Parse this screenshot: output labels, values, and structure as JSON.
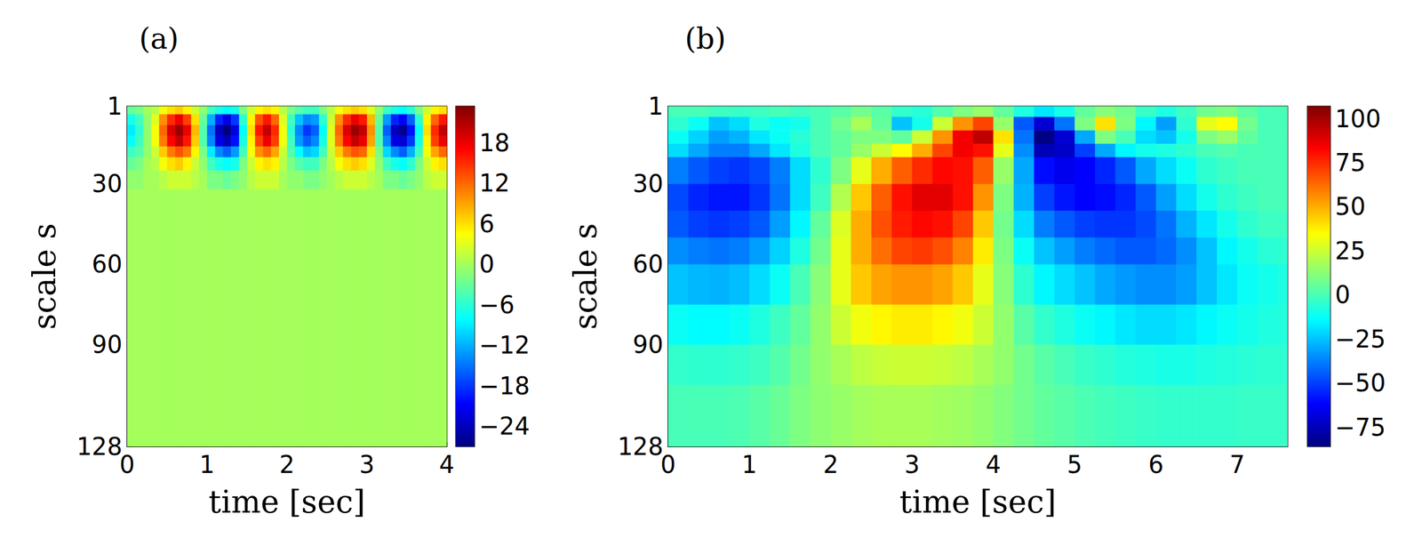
{
  "chart_data": [
    {
      "type": "heatmap",
      "title": "(a)",
      "xlabel": "time [sec]",
      "ylabel": "scale s",
      "xlim": [
        0,
        4
      ],
      "xticks": [
        0,
        1,
        2,
        3,
        4
      ],
      "ylim": [
        128,
        1
      ],
      "yticks": [
        1,
        30,
        60,
        90,
        128
      ],
      "cells": {
        "x_edges": [
          0,
          0.1,
          0.2,
          0.3,
          0.4,
          0.5,
          0.6,
          0.7,
          0.8,
          0.9,
          1,
          1.1,
          1.2,
          1.3,
          1.4,
          1.5,
          1.6,
          1.7,
          1.8,
          1.9,
          2,
          2.1,
          2.2,
          2.3,
          2.4,
          2.5,
          2.6,
          2.7,
          2.8,
          2.9,
          3,
          3.1,
          3.2,
          3.3,
          3.4,
          3.5,
          3.6,
          3.7,
          3.8,
          3.9,
          4
        ],
        "y_edges": [
          1,
          4,
          8,
          12,
          16,
          20,
          25,
          32,
          128
        ],
        "z": [
          [
            -3,
            -2,
            0,
            1,
            4,
            6,
            7,
            5,
            2,
            -1,
            -5,
            -7,
            -8,
            -7,
            -2,
            2,
            5,
            6,
            5,
            1,
            -2,
            -4,
            -5,
            -5,
            -2,
            1,
            4,
            6,
            7,
            6,
            3,
            -1,
            -5,
            -7,
            -8,
            -6,
            -2,
            2,
            5,
            6
          ],
          [
            -7,
            -5,
            -1,
            3,
            10,
            15,
            18,
            14,
            6,
            -3,
            -12,
            -19,
            -22,
            -18,
            -6,
            5,
            13,
            16,
            12,
            3,
            -5,
            -11,
            -14,
            -13,
            -6,
            2,
            10,
            15,
            18,
            16,
            8,
            -3,
            -13,
            -19,
            -21,
            -16,
            -6,
            5,
            12,
            16
          ],
          [
            -9,
            -6,
            -1,
            4,
            12,
            19,
            22,
            18,
            8,
            -4,
            -15,
            -24,
            -27,
            -22,
            -8,
            6,
            16,
            20,
            15,
            4,
            -6,
            -14,
            -18,
            -16,
            -8,
            3,
            12,
            19,
            22,
            20,
            10,
            -4,
            -16,
            -24,
            -26,
            -20,
            -8,
            6,
            15,
            20
          ],
          [
            -8,
            -5,
            -1,
            4,
            11,
            17,
            20,
            16,
            7,
            -4,
            -14,
            -22,
            -24,
            -20,
            -7,
            5,
            14,
            18,
            14,
            4,
            -5,
            -13,
            -16,
            -14,
            -7,
            3,
            11,
            17,
            20,
            18,
            9,
            -4,
            -14,
            -22,
            -23,
            -18,
            -7,
            5,
            14,
            18
          ],
          [
            -5,
            -4,
            -1,
            2,
            7,
            11,
            13,
            11,
            5,
            -2,
            -9,
            -14,
            -16,
            -13,
            -5,
            4,
            10,
            12,
            9,
            2,
            -4,
            -8,
            -11,
            -10,
            -5,
            2,
            7,
            11,
            13,
            12,
            6,
            -2,
            -10,
            -14,
            -16,
            -12,
            -5,
            4,
            9,
            12
          ],
          [
            -3,
            -2,
            0,
            1,
            4,
            6,
            7,
            5,
            2,
            -1,
            -5,
            -7,
            -8,
            -7,
            -2,
            2,
            5,
            6,
            5,
            1,
            -2,
            -4,
            -5,
            -5,
            -2,
            1,
            4,
            6,
            7,
            6,
            3,
            -1,
            -5,
            -7,
            -8,
            -6,
            -2,
            2,
            5,
            6
          ],
          [
            -1,
            -1,
            0,
            0,
            1,
            2,
            2,
            2,
            1,
            0,
            -2,
            -2,
            -3,
            -2,
            -1,
            1,
            2,
            2,
            2,
            0,
            -1,
            -1,
            -2,
            -2,
            -1,
            0,
            1,
            2,
            2,
            2,
            1,
            0,
            -2,
            -2,
            -3,
            -2,
            -1,
            1,
            2,
            2
          ],
          [
            0,
            0,
            0,
            0,
            0,
            0,
            0,
            0,
            0,
            0,
            0,
            0,
            0,
            0,
            0,
            0,
            0,
            0,
            0,
            0,
            0,
            0,
            0,
            0,
            0,
            0,
            0,
            0,
            0,
            0,
            0,
            0,
            0,
            0,
            0,
            0,
            0,
            0,
            0,
            0
          ]
        ]
      },
      "colorbar": {
        "range": [
          -27,
          23.4
        ],
        "ticks": [
          {
            "value": -24,
            "label": "−24"
          },
          {
            "value": -18,
            "label": "−18"
          },
          {
            "value": -12,
            "label": "−12"
          },
          {
            "value": -6,
            "label": "−6"
          },
          0,
          6,
          12,
          18
        ]
      }
    },
    {
      "type": "heatmap",
      "title": "(b)",
      "xlabel": "time [sec]",
      "ylabel": "scale s",
      "xlim": [
        0,
        7.62
      ],
      "xticks": [
        0,
        1,
        2,
        3,
        4,
        5,
        6,
        7
      ],
      "ylim": [
        128,
        1
      ],
      "yticks": [
        1,
        30,
        60,
        90,
        128
      ],
      "cells": {
        "x_edges": [
          0,
          0.25,
          0.5,
          0.75,
          1,
          1.25,
          1.5,
          1.75,
          2,
          2.25,
          2.5,
          2.75,
          3,
          3.25,
          3.5,
          3.75,
          4,
          4.25,
          4.5,
          4.75,
          5,
          5.25,
          5.5,
          5.75,
          6,
          6.25,
          6.5,
          6.75,
          7,
          7.25,
          7.5,
          7.62
        ],
        "y_edges": [
          1,
          5,
          10,
          15,
          20,
          30,
          40,
          50,
          60,
          75,
          90,
          105,
          128
        ],
        "z": [
          [
            0,
            0,
            -2,
            -3,
            -2,
            0,
            -2,
            0,
            3,
            8,
            3,
            -4,
            -6,
            2,
            10,
            15,
            5,
            -8,
            -18,
            -10,
            5,
            12,
            8,
            -3,
            -8,
            -2,
            8,
            10,
            4,
            0,
            0
          ],
          [
            -5,
            -12,
            -25,
            -20,
            -8,
            -12,
            -10,
            0,
            8,
            18,
            5,
            -25,
            -10,
            25,
            55,
            70,
            15,
            -45,
            -70,
            -40,
            10,
            40,
            10,
            -15,
            -32,
            -5,
            30,
            35,
            8,
            0,
            0
          ],
          [
            -12,
            -22,
            -32,
            -28,
            -18,
            -12,
            -6,
            0,
            5,
            10,
            10,
            5,
            25,
            55,
            85,
            95,
            40,
            -40,
            -85,
            -70,
            -30,
            10,
            0,
            -20,
            -25,
            -10,
            10,
            15,
            5,
            0,
            0
          ],
          [
            -20,
            -30,
            -38,
            -38,
            -30,
            -18,
            -8,
            0,
            5,
            15,
            25,
            35,
            50,
            70,
            85,
            80,
            30,
            -35,
            -75,
            -72,
            -50,
            -30,
            -15,
            -10,
            -8,
            -5,
            0,
            2,
            0,
            0,
            0
          ],
          [
            -38,
            -45,
            -50,
            -52,
            -48,
            -38,
            -20,
            -5,
            10,
            30,
            50,
            65,
            75,
            82,
            80,
            65,
            15,
            -30,
            -60,
            -65,
            -62,
            -55,
            -45,
            -30,
            -20,
            -12,
            -5,
            -2,
            0,
            0,
            0
          ],
          [
            -48,
            -55,
            -58,
            -58,
            -52,
            -40,
            -20,
            -2,
            20,
            45,
            65,
            80,
            88,
            88,
            80,
            55,
            10,
            -28,
            -50,
            -58,
            -62,
            -60,
            -55,
            -45,
            -32,
            -20,
            -10,
            -5,
            -2,
            0,
            0
          ],
          [
            -45,
            -50,
            -52,
            -50,
            -45,
            -32,
            -15,
            5,
            28,
            50,
            68,
            78,
            82,
            80,
            70,
            45,
            8,
            -20,
            -38,
            -45,
            -50,
            -52,
            -52,
            -48,
            -40,
            -28,
            -18,
            -10,
            -5,
            -2,
            -2
          ],
          [
            -35,
            -38,
            -40,
            -38,
            -32,
            -22,
            -8,
            8,
            30,
            50,
            62,
            70,
            72,
            68,
            58,
            38,
            10,
            -12,
            -25,
            -32,
            -38,
            -42,
            -45,
            -45,
            -42,
            -35,
            -25,
            -15,
            -10,
            -6,
            -5
          ],
          [
            -25,
            -27,
            -28,
            -26,
            -20,
            -12,
            0,
            12,
            30,
            45,
            52,
            55,
            55,
            52,
            45,
            30,
            12,
            -5,
            -15,
            -20,
            -25,
            -30,
            -33,
            -35,
            -35,
            -32,
            -25,
            -18,
            -12,
            -10,
            -8
          ],
          [
            -12,
            -14,
            -14,
            -12,
            -8,
            -2,
            5,
            14,
            25,
            32,
            36,
            38,
            38,
            36,
            32,
            25,
            14,
            3,
            -4,
            -8,
            -12,
            -15,
            -18,
            -20,
            -20,
            -18,
            -15,
            -12,
            -10,
            -8,
            -7
          ],
          [
            -4,
            -5,
            -5,
            -4,
            -2,
            2,
            8,
            14,
            18,
            22,
            24,
            25,
            25,
            24,
            22,
            18,
            14,
            8,
            3,
            0,
            -3,
            -5,
            -7,
            -8,
            -9,
            -9,
            -8,
            -7,
            -6,
            -5,
            -5
          ],
          [
            0,
            0,
            0,
            1,
            3,
            6,
            10,
            13,
            15,
            17,
            18,
            18,
            18,
            17,
            16,
            14,
            11,
            8,
            5,
            3,
            1,
            -1,
            -2,
            -3,
            -4,
            -4,
            -4,
            -4,
            -3,
            -3,
            -3
          ]
        ]
      },
      "colorbar": {
        "range": [
          -86,
          107
        ],
        "ticks": [
          {
            "value": -75,
            "label": "−75"
          },
          {
            "value": -50,
            "label": "−50"
          },
          {
            "value": -25,
            "label": "−25"
          },
          0,
          25,
          50,
          75,
          100
        ]
      }
    }
  ]
}
